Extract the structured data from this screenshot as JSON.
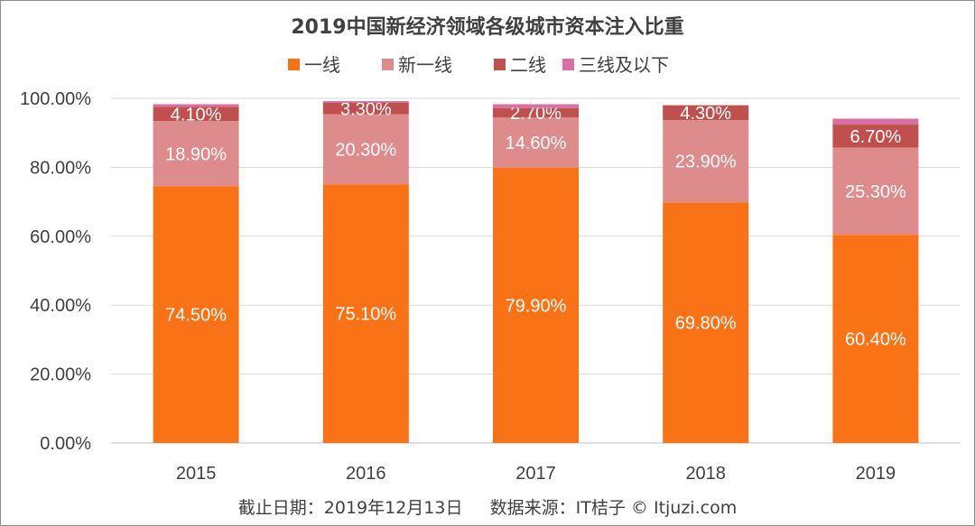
{
  "chart_data": {
    "type": "bar",
    "stacked": true,
    "title": "2019中国新经济领域各级城市资本注入比重",
    "categories": [
      "2015",
      "2016",
      "2017",
      "2018",
      "2019"
    ],
    "series": [
      {
        "name": "一线",
        "color": "#f97316",
        "values": [
          74.5,
          75.1,
          79.9,
          69.8,
          60.4
        ],
        "labels": [
          "74.50%",
          "75.10%",
          "79.90%",
          "69.80%",
          "60.40%"
        ]
      },
      {
        "name": "新一线",
        "color": "#dd8b8b",
        "values": [
          18.9,
          20.3,
          14.6,
          23.9,
          25.3
        ],
        "labels": [
          "18.90%",
          "20.30%",
          "14.60%",
          "23.90%",
          "25.30%"
        ]
      },
      {
        "name": "二线",
        "color": "#c0504d",
        "values": [
          4.1,
          3.3,
          2.7,
          4.3,
          6.7
        ],
        "labels": [
          "4.10%",
          "3.30%",
          "2.70%",
          "4.30%",
          "6.70%"
        ]
      },
      {
        "name": "三线及以下",
        "color": "#d96fa3",
        "values": [
          0.8,
          0.5,
          1.1,
          0.0,
          1.7
        ],
        "labels": [
          "",
          "",
          "",
          "",
          ""
        ]
      }
    ],
    "ylim": [
      0,
      100
    ],
    "yticks": [
      "0.00%",
      "20.00%",
      "40.00%",
      "60.00%",
      "80.00%",
      "100.00%"
    ],
    "grid": true,
    "legend": "top"
  },
  "footer": "截止日期：2019年12月13日     数据来源：IT桔子 © Itjuzi.com"
}
